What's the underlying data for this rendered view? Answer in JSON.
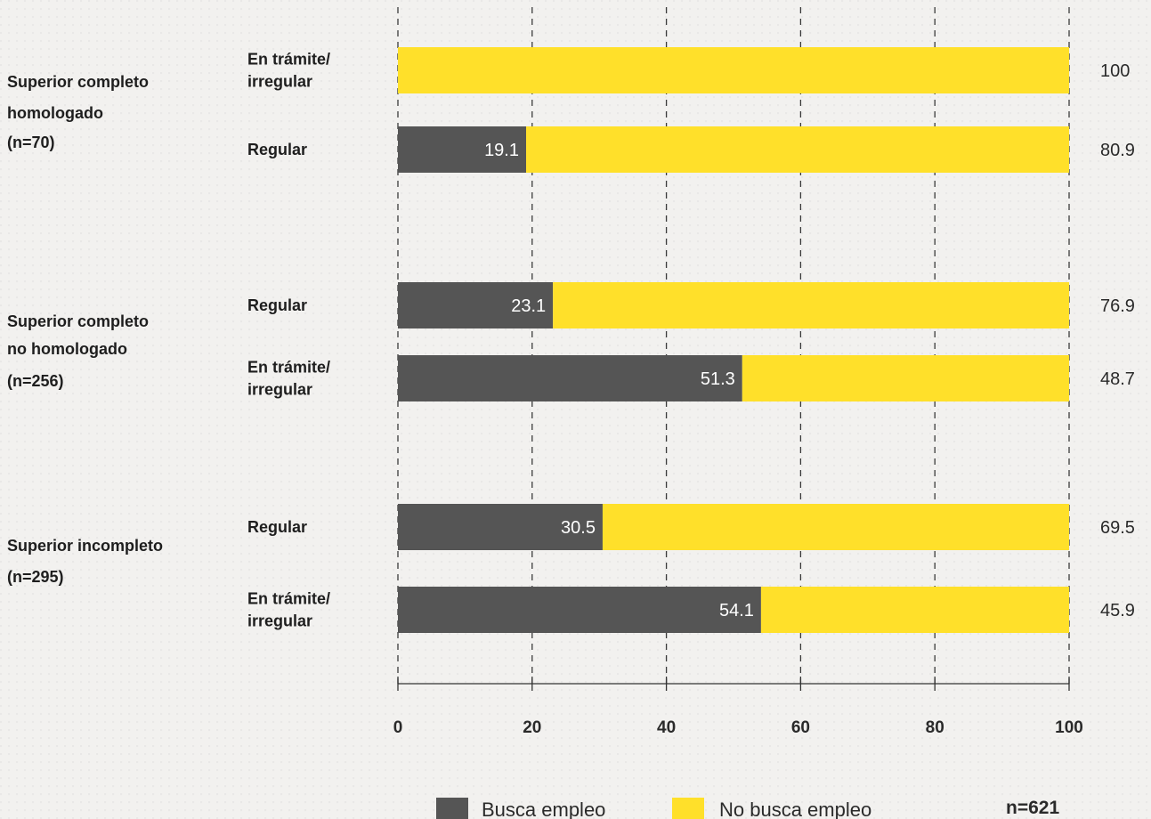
{
  "chart_data": {
    "type": "bar",
    "orientation": "horizontal",
    "stacked": true,
    "xlim": [
      0,
      100
    ],
    "x_ticks": [
      0,
      20,
      40,
      60,
      80,
      100
    ],
    "grid": "vertical dashed",
    "groups": [
      {
        "label_lines": [
          "Superior completo",
          "homologado",
          "(n=70)"
        ],
        "rows": [
          {
            "label_lines": [
              "En trámite/",
              "irregular"
            ],
            "values": [
              0,
              100
            ],
            "labels": [
              "",
              "100"
            ]
          },
          {
            "label_lines": [
              "Regular"
            ],
            "values": [
              19.1,
              80.9
            ],
            "labels": [
              "19.1",
              "80.9"
            ]
          }
        ]
      },
      {
        "label_lines": [
          "Superior completo",
          "no homologado",
          "(n=256)"
        ],
        "rows": [
          {
            "label_lines": [
              "Regular"
            ],
            "values": [
              23.1,
              76.9
            ],
            "labels": [
              "23.1",
              "76.9"
            ]
          },
          {
            "label_lines": [
              "En trámite/",
              "irregular"
            ],
            "values": [
              51.3,
              48.7
            ],
            "labels": [
              "51.3",
              "48.7"
            ]
          }
        ]
      },
      {
        "label_lines": [
          "Superior incompleto",
          "(n=295)"
        ],
        "rows": [
          {
            "label_lines": [
              "Regular"
            ],
            "values": [
              30.5,
              69.5
            ],
            "labels": [
              "30.5",
              "69.5"
            ]
          },
          {
            "label_lines": [
              "En trámite/",
              "irregular"
            ],
            "values": [
              54.1,
              45.9
            ],
            "labels": [
              "54.1",
              "45.9"
            ]
          }
        ]
      }
    ],
    "series": [
      {
        "name": "Busca empleo",
        "color": "#555555"
      },
      {
        "name": "No busca empleo",
        "color": "#ffe02a"
      }
    ],
    "legend_position": "bottom",
    "note": "n=621"
  }
}
